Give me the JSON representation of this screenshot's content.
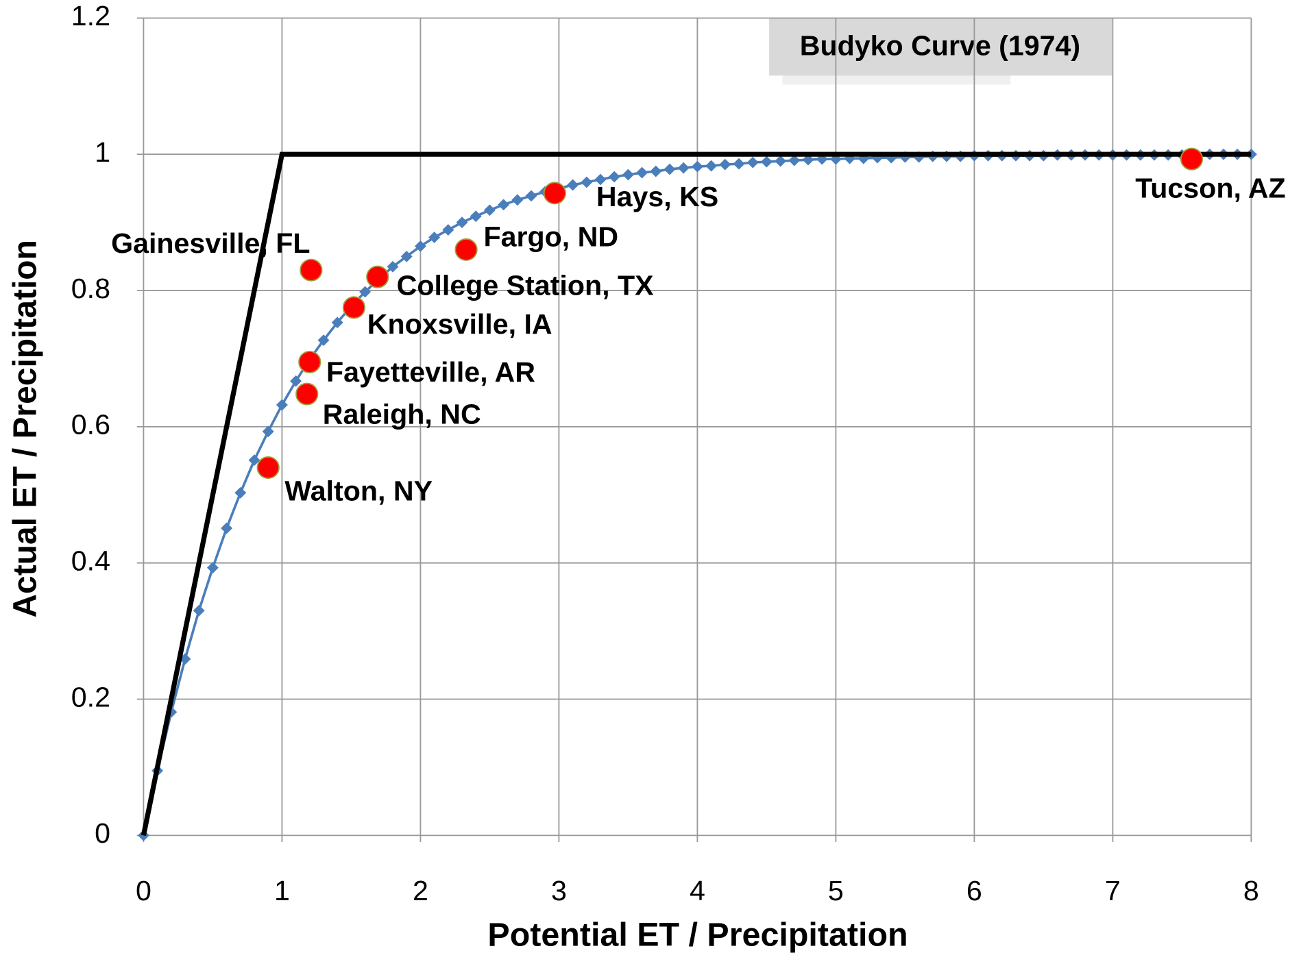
{
  "chart_data": {
    "type": "scatter",
    "title": "Budyko Curve (1974)",
    "x_label": "Potential ET / Precipitation",
    "y_label": "Actual ET / Precipitation",
    "xlim": [
      0,
      8
    ],
    "ylim": [
      0,
      1.2
    ],
    "xticks": [
      0,
      1,
      2,
      3,
      4,
      5,
      6,
      7,
      8
    ],
    "yticks": [
      0,
      0.2,
      0.4,
      0.6,
      0.8,
      1,
      1.2
    ],
    "grid": true,
    "lines": [
      {
        "color": "#4a7ebb",
        "marker": "diamond",
        "x": [
          0,
          0.1,
          0.2,
          0.3,
          0.4,
          0.5,
          0.6,
          0.7,
          0.8,
          0.9,
          1,
          1.1,
          1.2,
          1.3,
          1.4,
          1.5,
          1.6,
          1.7,
          1.8,
          1.9,
          2,
          2.1,
          2.2,
          2.3,
          2.4,
          2.5,
          2.6,
          2.7,
          2.8,
          2.9,
          3,
          3.1,
          3.2,
          3.3,
          3.4,
          3.5,
          3.6,
          3.7,
          3.8,
          3.9,
          4,
          4.1,
          4.2,
          4.3,
          4.4,
          4.5,
          4.6,
          4.7,
          4.8,
          4.9,
          5,
          5.1,
          5.2,
          5.3,
          5.4,
          5.5,
          5.6,
          5.7,
          5.8,
          5.9,
          6,
          6.1,
          6.2,
          6.3,
          6.4,
          6.5,
          6.6,
          6.7,
          6.8,
          6.9,
          7,
          7.1,
          7.2,
          7.3,
          7.4,
          7.5,
          7.6,
          7.7,
          7.8,
          7.9,
          8
        ],
        "y": [
          0,
          0.095,
          0.181,
          0.259,
          0.33,
          0.393,
          0.451,
          0.503,
          0.551,
          0.593,
          0.632,
          0.667,
          0.699,
          0.727,
          0.753,
          0.777,
          0.798,
          0.817,
          0.835,
          0.85,
          0.865,
          0.878,
          0.889,
          0.9,
          0.909,
          0.918,
          0.926,
          0.933,
          0.939,
          0.945,
          0.95,
          0.955,
          0.959,
          0.963,
          0.967,
          0.97,
          0.973,
          0.975,
          0.978,
          0.98,
          0.982,
          0.983,
          0.985,
          0.986,
          0.988,
          0.989,
          0.99,
          0.991,
          0.992,
          0.993,
          0.993,
          0.994,
          0.994,
          0.995,
          0.995,
          0.996,
          0.996,
          0.997,
          0.997,
          0.997,
          0.998,
          0.998,
          0.998,
          0.998,
          0.998,
          0.998,
          0.999,
          0.999,
          0.999,
          0.999,
          0.999,
          0.999,
          0.999,
          0.999,
          0.999,
          0.999,
          0.999,
          1,
          1,
          1,
          1
        ]
      },
      {
        "color": "#000000",
        "marker": "none",
        "x": [
          0,
          1,
          8
        ],
        "y": [
          0,
          1,
          1
        ]
      }
    ],
    "points": {
      "color": "#ff0000",
      "names": [
        "Gainesville, FL",
        "College Station, TX",
        "Knoxsville, IA",
        "Fayetteville, AR",
        "Raleigh, NC",
        "Walton, NY",
        "Fargo, ND",
        "Hays, KS",
        "Tucson, AZ"
      ],
      "x": [
        1.21,
        1.69,
        1.52,
        1.2,
        1.18,
        0.9,
        2.33,
        2.97,
        7.57
      ],
      "y": [
        0.83,
        0.82,
        0.775,
        0.695,
        0.648,
        0.54,
        0.86,
        0.943,
        0.993
      ]
    }
  }
}
